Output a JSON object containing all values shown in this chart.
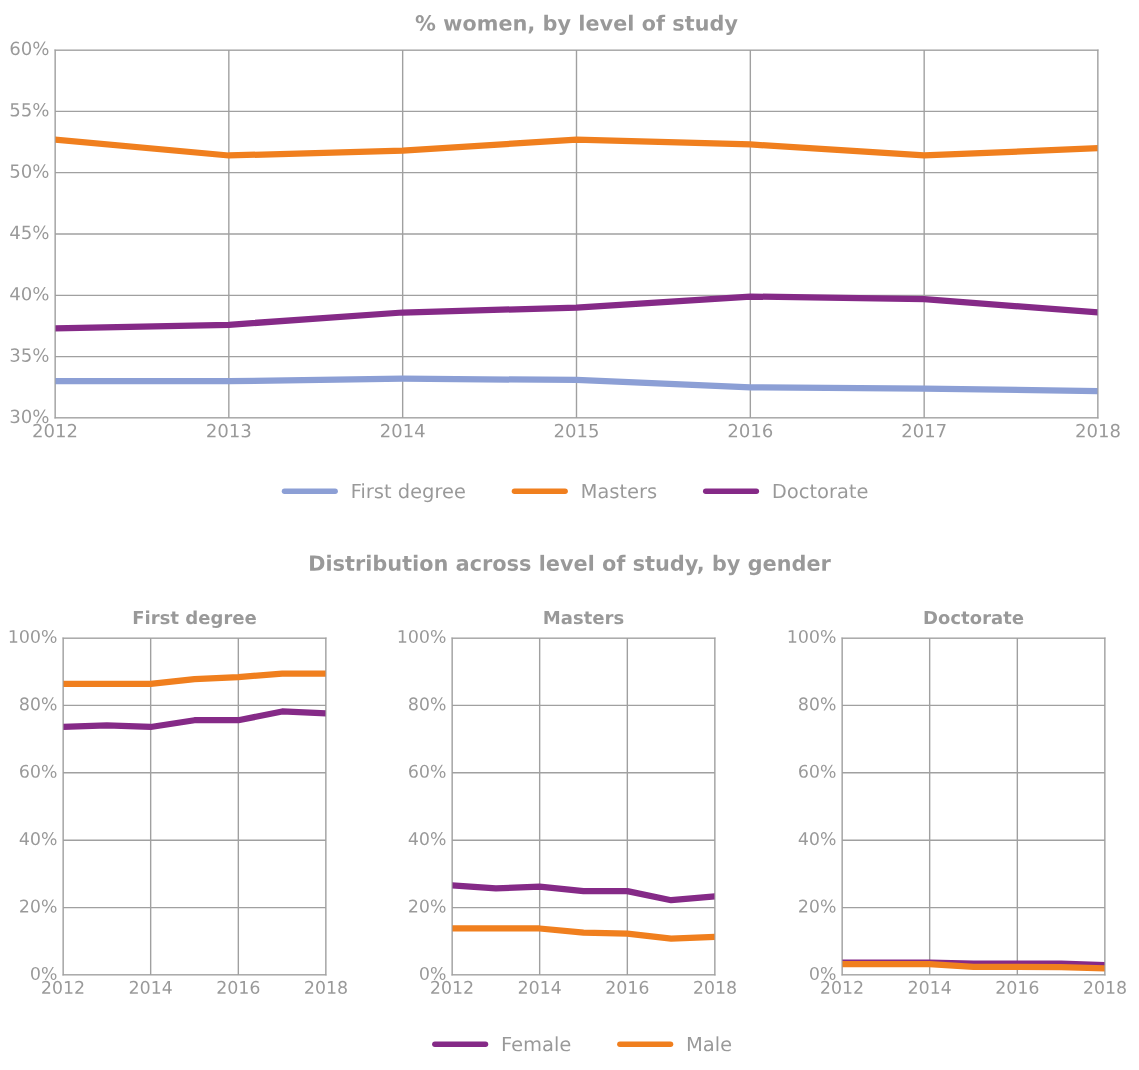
{
  "chart_data": [
    {
      "type": "line",
      "title": "% women, by level of study",
      "x": [
        2012,
        2013,
        2014,
        2015,
        2016,
        2017,
        2018
      ],
      "xlim": [
        2012,
        2018
      ],
      "xticks": [
        2012,
        2013,
        2014,
        2015,
        2016,
        2017,
        2018
      ],
      "ylim": [
        30,
        60
      ],
      "yticks": [
        {
          "value": 30,
          "label": "30%"
        },
        {
          "value": 35,
          "label": "35%"
        },
        {
          "value": 40,
          "label": "40%"
        },
        {
          "value": 45,
          "label": "45%"
        },
        {
          "value": 50,
          "label": "50%"
        },
        {
          "value": 55,
          "label": "55%"
        },
        {
          "value": 60,
          "label": "60%"
        }
      ],
      "grid": true,
      "legend": "bottom",
      "series": [
        {
          "name": "First degree",
          "color": "#8c9fd5",
          "values": [
            33.0,
            33.0,
            33.2,
            33.1,
            32.5,
            32.4,
            32.2
          ]
        },
        {
          "name": "Masters",
          "color": "#f07f1e",
          "values": [
            52.7,
            51.4,
            51.8,
            52.7,
            52.3,
            51.4,
            52.0
          ]
        },
        {
          "name": "Doctorate",
          "color": "#852a87",
          "values": [
            37.3,
            37.6,
            38.6,
            39.0,
            39.9,
            39.7,
            38.6
          ]
        }
      ]
    },
    {
      "type": "line",
      "title": "First degree",
      "x": [
        2012,
        2013,
        2014,
        2015,
        2016,
        2017,
        2018
      ],
      "xlim": [
        2012,
        2018
      ],
      "xticks": [
        2012,
        2014,
        2016,
        2018
      ],
      "ylim": [
        0,
        100
      ],
      "yticks": [
        {
          "value": 0,
          "label": "0%"
        },
        {
          "value": 20,
          "label": "20%"
        },
        {
          "value": 40,
          "label": "40%"
        },
        {
          "value": 60,
          "label": "60%"
        },
        {
          "value": 80,
          "label": "80%"
        },
        {
          "value": 100,
          "label": "100%"
        }
      ],
      "grid": true,
      "series": [
        {
          "color": "#852a87",
          "values": [
            73.6,
            74.1,
            73.6,
            75.6,
            75.6,
            78.2,
            77.6
          ]
        },
        {
          "color": "#f07f1e",
          "values": [
            86.4,
            86.4,
            86.4,
            87.8,
            88.4,
            89.4,
            89.4
          ]
        }
      ]
    },
    {
      "type": "line",
      "title": "Masters",
      "subtitle": "Distribution across level of study, by gender",
      "x": [
        2012,
        2013,
        2014,
        2015,
        2016,
        2017,
        2018
      ],
      "xlim": [
        2012,
        2018
      ],
      "xticks": [
        2012,
        2014,
        2016,
        2018
      ],
      "ylim": [
        0,
        100
      ],
      "yticks": [
        {
          "value": 0,
          "label": "0%"
        },
        {
          "value": 20,
          "label": "20%"
        },
        {
          "value": 40,
          "label": "40%"
        },
        {
          "value": 60,
          "label": "60%"
        },
        {
          "value": 80,
          "label": "80%"
        },
        {
          "value": 100,
          "label": "100%"
        }
      ],
      "grid": true,
      "legend": "bottom",
      "series": [
        {
          "name": "Female",
          "color": "#852a87",
          "values": [
            26.6,
            25.7,
            26.2,
            24.9,
            24.9,
            22.2,
            23.3
          ]
        },
        {
          "name": "Male",
          "color": "#f07f1e",
          "values": [
            13.8,
            13.8,
            13.8,
            12.6,
            12.3,
            10.8,
            11.3
          ]
        }
      ]
    },
    {
      "type": "line",
      "title": "Doctorate",
      "x": [
        2012,
        2013,
        2014,
        2015,
        2016,
        2017,
        2018
      ],
      "xlim": [
        2012,
        2018
      ],
      "xticks": [
        2012,
        2014,
        2016,
        2018
      ],
      "ylim": [
        0,
        100
      ],
      "yticks": [
        {
          "value": 0,
          "label": "0%"
        },
        {
          "value": 20,
          "label": "20%"
        },
        {
          "value": 40,
          "label": "40%"
        },
        {
          "value": 60,
          "label": "60%"
        },
        {
          "value": 80,
          "label": "80%"
        },
        {
          "value": 100,
          "label": "100%"
        }
      ],
      "grid": true,
      "series": [
        {
          "color": "#852a87",
          "values": [
            3.7,
            3.7,
            3.7,
            3.4,
            3.4,
            3.4,
            2.9
          ]
        },
        {
          "color": "#f07f1e",
          "values": [
            3.2,
            3.2,
            3.2,
            2.4,
            2.4,
            2.3,
            2.0
          ]
        }
      ]
    }
  ]
}
